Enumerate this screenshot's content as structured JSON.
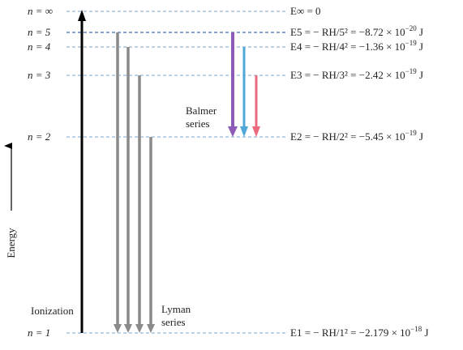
{
  "levels": [
    {
      "key": "inf",
      "label": "n = ∞",
      "energy_main": "E∞ = 0",
      "energy_sup": ""
    },
    {
      "key": "n5",
      "label": "n = 5",
      "energy_main": "E5 = − RH/5² = −8.72 × 10",
      "energy_sup": "−20",
      "energy_unit": " J"
    },
    {
      "key": "n4",
      "label": "n = 4",
      "energy_main": "E4 = − RH/4² = −1.36 × 10",
      "energy_sup": "−19",
      "energy_unit": " J"
    },
    {
      "key": "n3",
      "label": "n = 3",
      "energy_main": "E3 = − RH/3² = −2.42 × 10",
      "energy_sup": "−19",
      "energy_unit": " J"
    },
    {
      "key": "n2",
      "label": "n = 2",
      "energy_main": "E2 = − RH/2² = −5.45 × 10",
      "energy_sup": "−19",
      "energy_unit": " J"
    },
    {
      "key": "n1",
      "label": "n = 1",
      "energy_main": "E1 = − RH/1² = −2.179 × 10",
      "energy_sup": "−18",
      "energy_unit": " J"
    }
  ],
  "axis_label": "Energy",
  "ionization_label": "Ionization",
  "balmer_label": [
    "Balmer",
    "series"
  ],
  "lyman_label": [
    "Lyman",
    "series"
  ],
  "colors": {
    "level_line": "#7aa7cf",
    "n5_line": "#3a6fb0",
    "ionization_arrow": "#000000",
    "lyman_arrow": "#8a8a8a",
    "balmer_violet": "#8e5bb8",
    "balmer_blue": "#4fa8d8",
    "balmer_red": "#ec6a7e",
    "text": "#222222"
  }
}
